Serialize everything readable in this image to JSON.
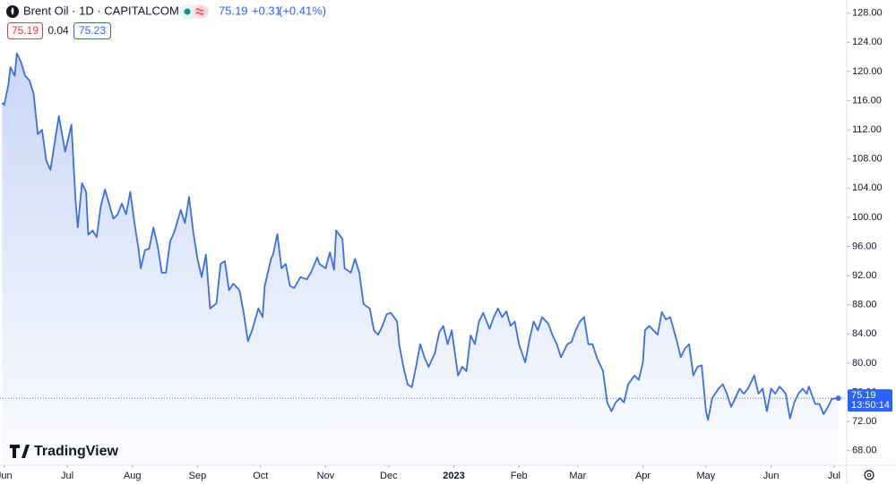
{
  "chart_data": {
    "type": "line",
    "title": "Brent Oil · 1D · CAPITALCOM",
    "last_price": 75.19,
    "change": "+0.31",
    "change_pct": "(+0.41%)",
    "sell": 75.19,
    "spread": 0.04,
    "buy": 75.23,
    "countdown": "13:50:14",
    "brand": "TradingView",
    "color": "#3d6fe0",
    "x": [
      -1,
      0,
      2,
      3,
      5,
      6,
      8,
      10,
      12,
      14,
      16,
      18,
      20,
      22,
      24,
      26,
      29,
      30,
      32,
      34,
      35,
      37,
      39,
      40,
      42,
      44,
      46,
      48,
      49,
      52,
      54,
      56,
      58,
      60,
      62,
      64,
      65,
      67,
      69,
      71,
      73,
      75,
      77,
      79,
      81,
      84,
      86,
      88,
      90,
      92,
      94,
      96,
      98,
      101,
      103,
      105,
      107,
      109,
      112,
      114,
      116,
      118,
      121,
      123,
      124,
      127,
      128,
      130,
      132,
      134,
      136,
      138,
      141,
      144,
      146,
      149,
      150,
      153,
      155,
      157,
      158,
      161,
      162,
      165,
      167,
      169,
      171,
      174,
      176,
      178,
      180,
      182,
      184,
      187,
      188,
      190,
      192,
      194,
      196,
      198,
      200,
      202,
      205,
      207,
      209,
      211,
      213,
      216,
      218,
      220,
      222,
      224,
      226,
      228,
      231,
      233,
      235,
      237,
      239,
      241,
      243,
      245,
      248,
      250,
      252,
      254,
      256,
      259,
      261,
      263,
      265,
      268,
      270,
      272,
      274,
      276,
      278,
      280,
      282,
      285,
      287,
      289,
      291,
      293,
      295,
      297,
      300,
      302,
      304,
      305,
      307,
      309,
      311,
      313,
      315,
      317,
      320,
      322,
      324,
      326,
      328,
      330,
      332,
      334,
      335,
      337,
      340,
      342,
      344,
      346,
      348,
      350,
      352,
      354,
      357,
      359,
      361,
      363,
      365,
      367,
      369,
      372,
      374,
      376,
      378,
      380,
      382,
      383,
      386,
      388,
      390,
      392,
      394,
      397
    ],
    "values": [
      115.7,
      115.4,
      118.2,
      120.6,
      119.4,
      122.5,
      121.3,
      119.4,
      118.8,
      117.0,
      111.4,
      112.0,
      107.8,
      106.5,
      110.2,
      113.9,
      109.0,
      110.2,
      112.7,
      102.2,
      98.6,
      104.7,
      103.5,
      97.6,
      98.2,
      97.3,
      101.6,
      103.8,
      102.8,
      99.8,
      100.4,
      101.9,
      100.4,
      103.5,
      99.2,
      95.5,
      93.0,
      95.5,
      95.7,
      98.6,
      96.1,
      92.4,
      92.4,
      96.7,
      98.0,
      101.0,
      99.2,
      102.8,
      98.0,
      94.3,
      91.8,
      94.9,
      87.5,
      88.2,
      93.6,
      94.0,
      90.0,
      90.9,
      90.0,
      86.9,
      83.0,
      84.5,
      87.5,
      86.3,
      90.6,
      94.3,
      94.9,
      97.7,
      93.0,
      93.6,
      90.6,
      90.3,
      91.8,
      91.5,
      92.4,
      94.5,
      93.6,
      93.0,
      95.2,
      92.8,
      98.2,
      97.0,
      93.0,
      92.4,
      94.3,
      92.4,
      88.1,
      87.5,
      84.5,
      83.9,
      85.1,
      86.7,
      86.9,
      85.7,
      82.6,
      79.5,
      77.1,
      76.7,
      79.5,
      82.6,
      80.8,
      79.5,
      81.4,
      84.2,
      85.1,
      82.6,
      84.5,
      78.3,
      79.5,
      78.9,
      83.8,
      82.6,
      85.7,
      86.9,
      84.7,
      86.3,
      87.5,
      86.3,
      87.1,
      85.1,
      85.7,
      82.6,
      80.1,
      83.2,
      85.7,
      84.5,
      86.3,
      85.4,
      83.8,
      82.6,
      80.8,
      82.6,
      82.9,
      84.5,
      85.7,
      86.3,
      82.6,
      82.6,
      80.8,
      78.9,
      74.6,
      73.4,
      74.6,
      75.2,
      74.6,
      77.1,
      78.3,
      77.7,
      80.1,
      84.5,
      85.1,
      84.5,
      83.9,
      87.0,
      86.0,
      86.3,
      83.2,
      80.8,
      82.0,
      82.6,
      78.3,
      79.5,
      79.7,
      73.4,
      72.2,
      75.2,
      76.5,
      77.1,
      75.8,
      74.0,
      75.2,
      76.5,
      75.8,
      76.5,
      78.3,
      75.8,
      76.5,
      73.4,
      76.5,
      75.8,
      76.8,
      75.8,
      72.4,
      74.6,
      75.8,
      76.5,
      75.8,
      76.8,
      74.4,
      74.4,
      73.0,
      74.0,
      75.1,
      75.19
    ],
    "xlim": [
      -2,
      401
    ],
    "ylim": [
      66,
      129.8
    ],
    "yticks": [
      {
        "value": 68,
        "label": "68.00"
      },
      {
        "value": 72,
        "label": "72.00"
      },
      {
        "value": 76,
        "label": "76.00"
      },
      {
        "value": 80,
        "label": "80.00"
      },
      {
        "value": 84,
        "label": "84.00"
      },
      {
        "value": 88,
        "label": "88.00"
      },
      {
        "value": 92,
        "label": "92.00"
      },
      {
        "value": 96,
        "label": "96.00"
      },
      {
        "value": 100,
        "label": "100.00"
      },
      {
        "value": 104,
        "label": "104.00"
      },
      {
        "value": 108,
        "label": "108.00"
      },
      {
        "value": 112,
        "label": "112.00"
      },
      {
        "value": 116,
        "label": "116.00"
      },
      {
        "value": 120,
        "label": "120.00"
      },
      {
        "value": 124,
        "label": "124.00"
      },
      {
        "value": 128,
        "label": "128.00"
      }
    ],
    "xticks": [
      {
        "value": 0,
        "label": "Jun"
      },
      {
        "value": 30,
        "label": "Jul"
      },
      {
        "value": 61,
        "label": "Aug"
      },
      {
        "value": 92,
        "label": "Sep"
      },
      {
        "value": 122,
        "label": "Oct"
      },
      {
        "value": 153,
        "label": "Nov"
      },
      {
        "value": 183,
        "label": "Dec"
      },
      {
        "value": 214,
        "label": "2023"
      },
      {
        "value": 245,
        "label": "Feb"
      },
      {
        "value": 273,
        "label": "Mar"
      },
      {
        "value": 304,
        "label": "Apr"
      },
      {
        "value": 334,
        "label": "May"
      },
      {
        "value": 365,
        "label": "Jun"
      },
      {
        "value": 395,
        "label": "Jul"
      }
    ]
  }
}
